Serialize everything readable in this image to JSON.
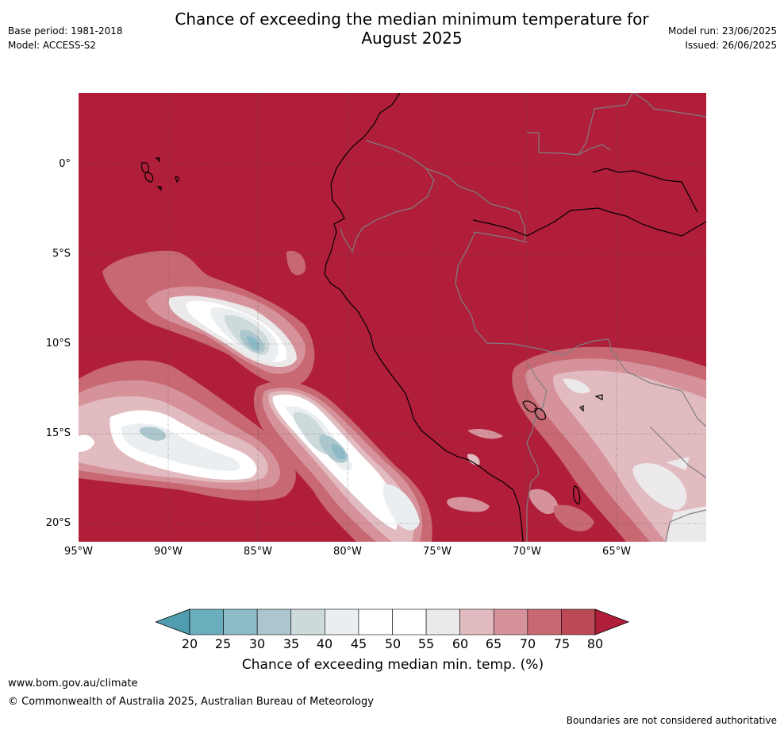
{
  "header": {
    "title_line1": "Chance of exceeding the median minimum temperature for",
    "title_line2": "August 2025",
    "base_period": "Base period: 1981-2018",
    "model": "Model: ACCESS-S2",
    "model_run": "Model run: 23/06/2025",
    "issued": "Issued: 26/06/2025"
  },
  "map": {
    "region": "western South America and adjacent Pacific",
    "lat_labels": [
      "0°",
      "5°S",
      "10°S",
      "15°S",
      "20°S"
    ],
    "lon_labels": [
      "95°W",
      "90°W",
      "85°W",
      "80°W",
      "75°W",
      "70°W",
      "65°W"
    ],
    "dominant_category": "80+",
    "colors": {
      "over80": "#b01e3a",
      "coast": "#000000",
      "border": "#7f7f7f"
    }
  },
  "colorbar": {
    "ticks": [
      "20",
      "25",
      "30",
      "35",
      "40",
      "45",
      "50",
      "55",
      "60",
      "65",
      "70",
      "75",
      "80"
    ],
    "colors": [
      "#4f9dae",
      "#6aadbc",
      "#8cbac6",
      "#abc7cd",
      "#ced9dc",
      "#eaeef0",
      "#ffffff",
      "#ffffff",
      "#ece9ea",
      "#e2bbc0",
      "#d6929a",
      "#c76873",
      "#bc4a56",
      "#b01e3a"
    ],
    "label": "Chance of exceeding median min. temp. (%)"
  },
  "footer": {
    "url": "www.bom.gov.au/climate",
    "copyright": "© Commonwealth of Australia 2025, Australian Bureau of Meteorology",
    "disclaimer": "Boundaries are not considered authoritative"
  }
}
